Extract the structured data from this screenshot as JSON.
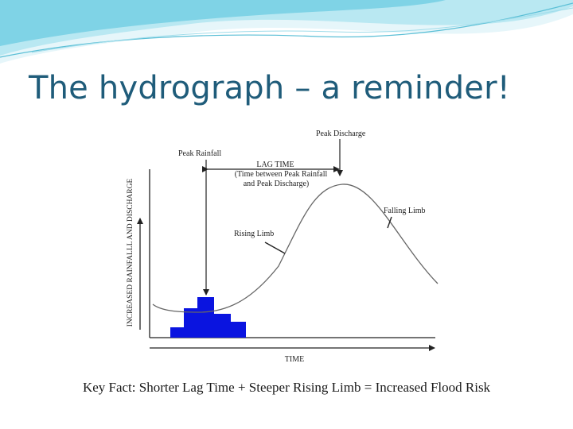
{
  "slide": {
    "title": "The hydrograph – a reminder!",
    "key_fact": "Key Fact: Shorter Lag Time + Steeper Rising Limb = Increased Flood Risk",
    "accent_color": "#1f5c7a",
    "banner_colors": [
      "#7fd3e6",
      "#b9e8f2",
      "#e6f6fa"
    ]
  },
  "diagram": {
    "y_axis_label": "INCREASED RAINFALLL AND DISCHARGE",
    "x_axis_label": "TIME",
    "peak_discharge_label": "Peak Discharge",
    "peak_rainfall_label": "Peak Rainfall",
    "lag_time_label": "LAG TIME",
    "lag_time_detail_line1": "(Time between Peak Rainfall",
    "lag_time_detail_line2": "and Peak Discharge)",
    "rising_limb_label": "Rising Limb",
    "falling_limb_label": "Falling Limb",
    "rainfall_color": "#0a14e0",
    "curve_color": "#666666"
  }
}
